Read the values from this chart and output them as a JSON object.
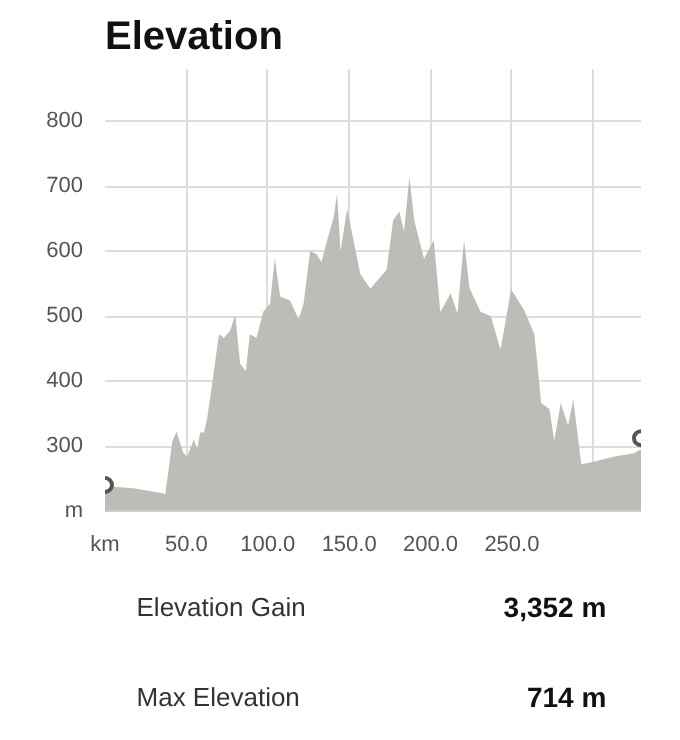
{
  "chart_data": {
    "type": "area",
    "title": "Elevation",
    "x": [
      0,
      7.4,
      17.7,
      36,
      37,
      41.4,
      44,
      48,
      50.5,
      54.6,
      56.6,
      58.7,
      60.7,
      62.8,
      66.8,
      70,
      73,
      77,
      80,
      83,
      86.5,
      89,
      93,
      97.3,
      101.4,
      104.3,
      107.6,
      113.7,
      119,
      122,
      126,
      130,
      133,
      136,
      140.6,
      142.6,
      144.7,
      148.8,
      156.8,
      163,
      173,
      177,
      180.8,
      183.7,
      187,
      190,
      196,
      202,
      206,
      212.4,
      216.5,
      220.6,
      223.9,
      230.8,
      237,
      243,
      249.5,
      257.7,
      263.8,
      268,
      273,
      276,
      280,
      284.5,
      287.7,
      292.6,
      298.8,
      313,
      325,
      329.3
    ],
    "series": [
      {
        "color": "#bdbcb6",
        "values": [
          238,
          237,
          235,
          227,
          225,
          308,
          322,
          290,
          284,
          310,
          296,
          322,
          320,
          343,
          413,
          472,
          466,
          478,
          502,
          427,
          415,
          472,
          466,
          507,
          519,
          589,
          530,
          524,
          495,
          519,
          600,
          595,
          583,
          612,
          653,
          688,
          600,
          665,
          565,
          542,
          571,
          647,
          661,
          630,
          714,
          647,
          588,
          617,
          506,
          535,
          504,
          617,
          543,
          506,
          500,
          448,
          541,
          508,
          472,
          366,
          357,
          308,
          366,
          331,
          372,
          272,
          275,
          284,
          289,
          295
        ]
      },
      {
        "type": "scatter",
        "color": "#555555",
        "marker": "circle",
        "x": [
          0,
          329.3
        ],
        "values": [
          240,
          312
        ]
      }
    ],
    "xlim": [
      0,
      329.3
    ],
    "ylim": [
      200,
      880
    ],
    "xticks": [
      {
        "value": 0,
        "label": "km"
      },
      {
        "value": 50,
        "label": "50.0"
      },
      {
        "value": 100,
        "label": "100.0"
      },
      {
        "value": 150,
        "label": "150.0"
      },
      {
        "value": 200,
        "label": "200.0"
      },
      {
        "value": 250,
        "label": "250.0"
      },
      {
        "value": 300,
        "label": null
      }
    ],
    "yticks": [
      {
        "value": 200,
        "label": "m"
      },
      300,
      400,
      500,
      600,
      700,
      800
    ],
    "grid": true,
    "annotations": [
      "Elevation Gain",
      "3,352 m",
      "Max Elevation",
      "714 m"
    ]
  }
}
